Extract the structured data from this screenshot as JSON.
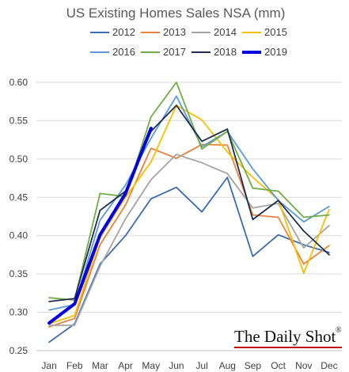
{
  "chart_data": {
    "type": "line",
    "title": "US Existing Homes Sales NSA (mm)",
    "categories": [
      "Jan",
      "Feb",
      "Mar",
      "Apr",
      "May",
      "Jun",
      "Jul",
      "Aug",
      "Sep",
      "Oct",
      "Nov",
      "Dec"
    ],
    "ylim": [
      0.25,
      0.6
    ],
    "yticks": [
      "0.25",
      "0.30",
      "0.35",
      "0.40",
      "0.45",
      "0.50",
      "0.55",
      "0.60"
    ],
    "grid": true,
    "legend_position": "top",
    "series": [
      {
        "name": "2012",
        "color": "#3a6ab0",
        "values": [
          0.261,
          0.285,
          0.363,
          0.4,
          0.448,
          0.463,
          0.431,
          0.476,
          0.373,
          0.401,
          0.388,
          0.378
        ]
      },
      {
        "name": "2013",
        "color": "#e8823c",
        "values": [
          0.281,
          0.292,
          0.388,
          0.44,
          0.514,
          0.501,
          0.519,
          0.518,
          0.427,
          0.424,
          0.363,
          0.387
        ]
      },
      {
        "name": "2014",
        "color": "#a5a5a5",
        "values": [
          0.283,
          0.283,
          0.36,
          0.422,
          0.473,
          0.506,
          0.495,
          0.481,
          0.436,
          0.442,
          0.384,
          0.413
        ]
      },
      {
        "name": "2015",
        "color": "#f5c000",
        "values": [
          0.285,
          0.296,
          0.397,
          0.45,
          0.496,
          0.57,
          0.551,
          0.509,
          0.476,
          0.447,
          0.351,
          0.434
        ]
      },
      {
        "name": "2016",
        "color": "#5b9bd5",
        "values": [
          0.303,
          0.31,
          0.42,
          0.466,
          0.527,
          0.582,
          0.516,
          0.536,
          0.487,
          0.446,
          0.418,
          0.438
        ]
      },
      {
        "name": "2017",
        "color": "#70ad47",
        "values": [
          0.319,
          0.316,
          0.455,
          0.451,
          0.555,
          0.6,
          0.513,
          0.536,
          0.462,
          0.458,
          0.424,
          0.427
        ]
      },
      {
        "name": "2018",
        "color": "#1f2d4e",
        "values": [
          0.314,
          0.318,
          0.433,
          0.458,
          0.536,
          0.57,
          0.523,
          0.539,
          0.421,
          0.446,
          0.406,
          0.375
        ]
      },
      {
        "name": "2019",
        "color": "#0000e0",
        "values": [
          0.286,
          0.311,
          0.401,
          0.455,
          0.54,
          null,
          null,
          null,
          null,
          null,
          null,
          null
        ]
      }
    ]
  },
  "watermark": {
    "text": "The Daily Shot",
    "mark": "®"
  }
}
